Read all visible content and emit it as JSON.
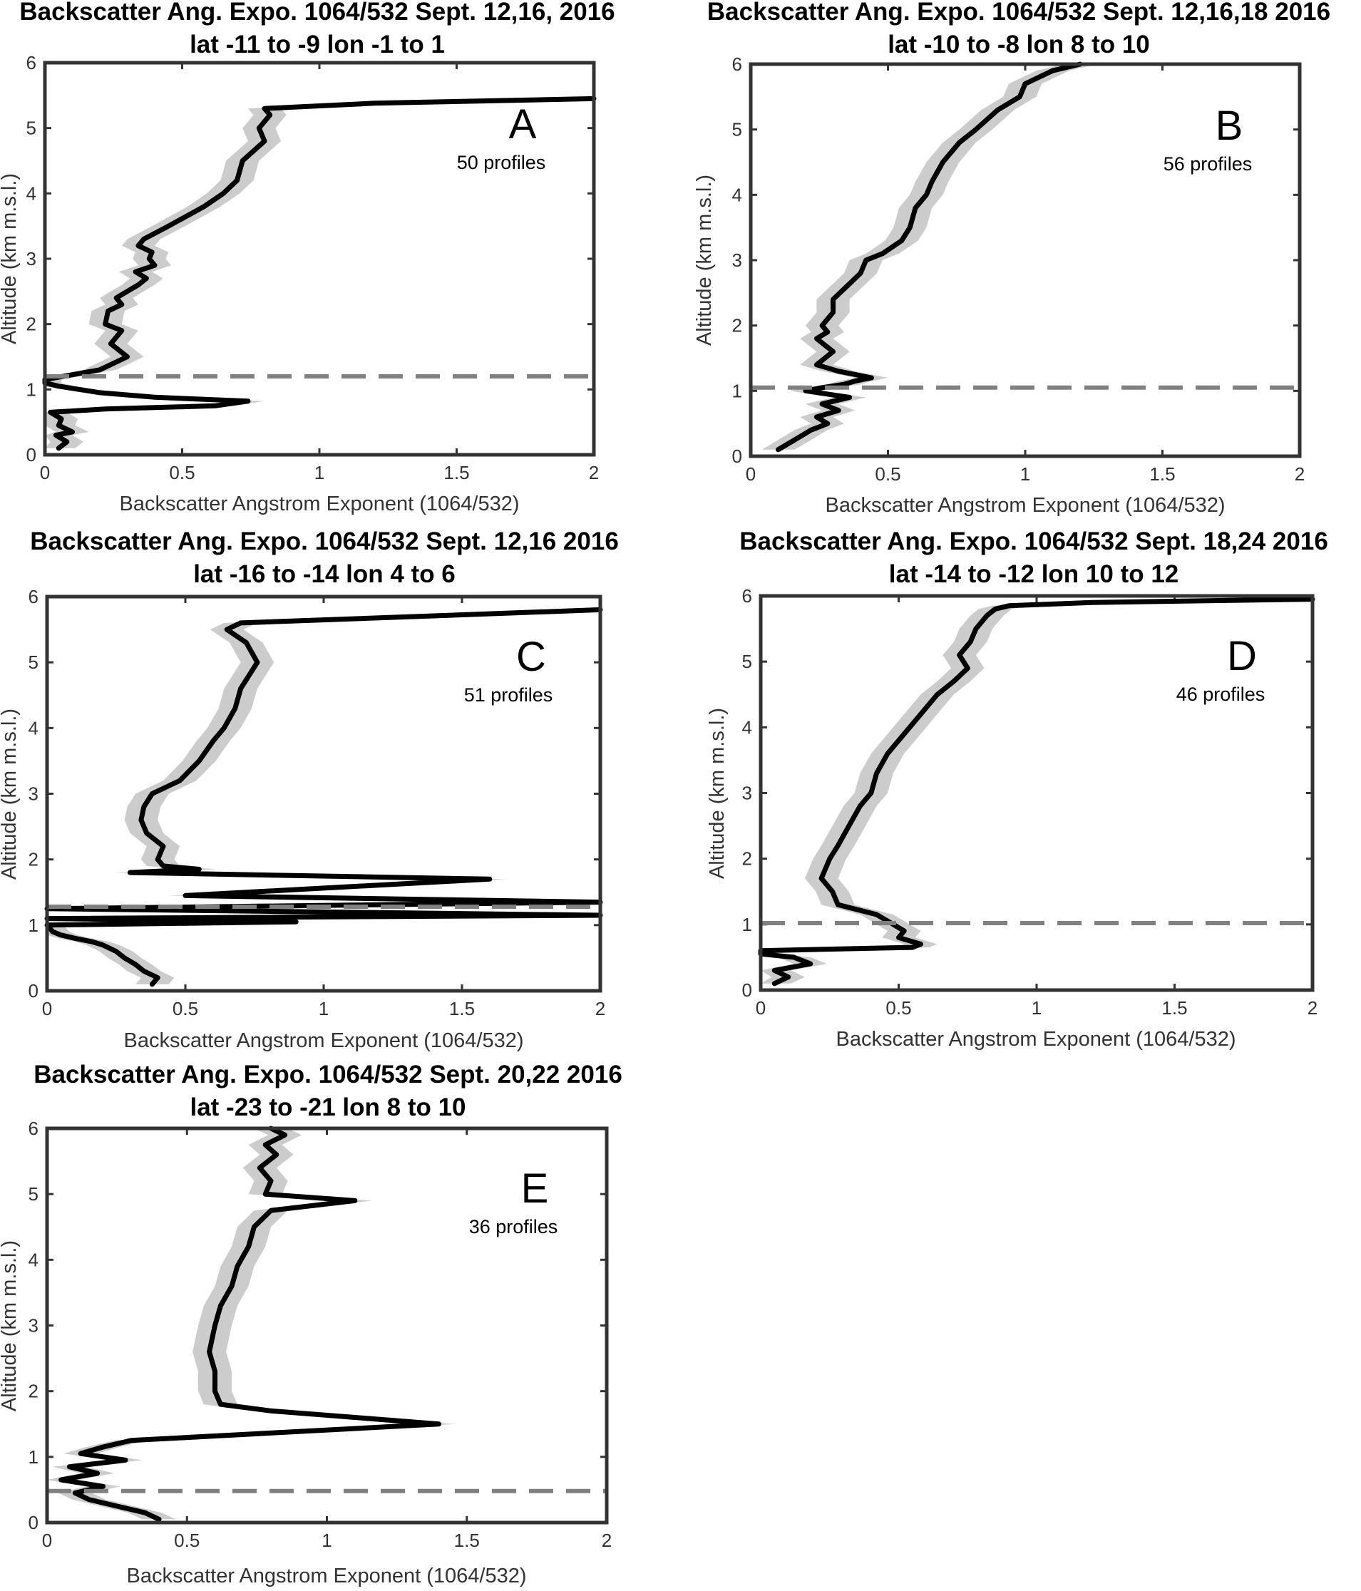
{
  "chart_data": [
    {
      "type": "line",
      "panel_letter": "A",
      "title_line1": "Backscatter Ang. Expo. 1064/532 Sept. 12,16, 2016",
      "title_line2": "lat -11 to -9 lon -1 to 1",
      "xlabel": "Backscatter Angstrom Exponent (1064/532)",
      "ylabel": "Altitude (km m.s.l.)",
      "xlim": [
        0,
        2
      ],
      "ylim": [
        0,
        6
      ],
      "xticks": [
        "0",
        "0.5",
        "1",
        "1.5",
        "2"
      ],
      "yticks": [
        "0",
        "1",
        "2",
        "3",
        "4",
        "5",
        "6"
      ],
      "profiles_label": "50 profiles",
      "dashed_line_altitude": 1.2,
      "series": [
        {
          "x": [
            0.05,
            0.08,
            0.04,
            0.1,
            0.05,
            0.06,
            0.02,
            0.22,
            0.62,
            0.74,
            0.4,
            0.2,
            0.05,
            0.0,
            0.0,
            0.2,
            0.3,
            0.24,
            0.28,
            0.22,
            0.23,
            0.28,
            0.26,
            0.3,
            0.34,
            0.37,
            0.33,
            0.4,
            0.38,
            0.39,
            0.34,
            0.36,
            0.45,
            0.58,
            0.65,
            0.7,
            0.72,
            0.8,
            0.78,
            0.82,
            0.8,
            1.2,
            2.0
          ],
          "y": [
            0.1,
            0.2,
            0.3,
            0.35,
            0.45,
            0.55,
            0.65,
            0.7,
            0.75,
            0.82,
            0.88,
            0.95,
            1.05,
            1.1,
            1.15,
            1.3,
            1.5,
            1.7,
            1.9,
            2.0,
            2.2,
            2.3,
            2.4,
            2.5,
            2.6,
            2.7,
            2.8,
            2.9,
            3.0,
            3.1,
            3.2,
            3.3,
            3.5,
            3.8,
            4.0,
            4.2,
            4.5,
            4.8,
            5.0,
            5.2,
            5.3,
            5.38,
            5.45
          ]
        }
      ]
    },
    {
      "type": "line",
      "panel_letter": "B",
      "title_line1": "Backscatter Ang. Expo. 1064/532 Sept. 12,16,18 2016",
      "title_line2": "lat -10 to -8 lon 8 to 10",
      "xlabel": "Backscatter Angstrom Exponent (1064/532)",
      "ylabel": "Altitude (km m.s.l.)",
      "xlim": [
        0,
        2
      ],
      "ylim": [
        0,
        6
      ],
      "xticks": [
        "0",
        "0.5",
        "1",
        "1.5",
        "2"
      ],
      "yticks": [
        "0",
        "1",
        "2",
        "3",
        "4",
        "5",
        "6"
      ],
      "profiles_label": "56 profiles",
      "dashed_line_altitude": 1.05,
      "series": [
        {
          "x": [
            0.1,
            0.14,
            0.18,
            0.22,
            0.28,
            0.24,
            0.32,
            0.26,
            0.36,
            0.2,
            0.26,
            0.34,
            0.38,
            0.44,
            0.32,
            0.24,
            0.3,
            0.24,
            0.28,
            0.26,
            0.3,
            0.3,
            0.35,
            0.4,
            0.42,
            0.48,
            0.55,
            0.58,
            0.6,
            0.64,
            0.66,
            0.7,
            0.76,
            0.82,
            0.9,
            0.98,
            1.0,
            1.1,
            1.2
          ],
          "y": [
            0.1,
            0.2,
            0.3,
            0.4,
            0.5,
            0.6,
            0.7,
            0.8,
            0.9,
            1.0,
            1.05,
            1.1,
            1.15,
            1.2,
            1.3,
            1.4,
            1.6,
            1.8,
            1.9,
            2.0,
            2.2,
            2.4,
            2.6,
            2.8,
            3.0,
            3.1,
            3.3,
            3.5,
            3.8,
            4.0,
            4.2,
            4.5,
            4.8,
            5.0,
            5.3,
            5.5,
            5.7,
            5.9,
            6.0
          ]
        }
      ]
    },
    {
      "type": "line",
      "panel_letter": "C",
      "title_line1": "Backscatter Ang. Expo. 1064/532 Sept. 12,16 2016",
      "title_line2": "lat -16 to -14 lon 4 to 6",
      "xlabel": "Backscatter Angstrom Exponent (1064/532)",
      "ylabel": "Altitude (km m.s.l.)",
      "xlim": [
        0,
        2
      ],
      "ylim": [
        0,
        6
      ],
      "xticks": [
        "0",
        "0.5",
        "1",
        "1.5",
        "2"
      ],
      "yticks": [
        "0",
        "1",
        "2",
        "3",
        "4",
        "5",
        "6"
      ],
      "profiles_label": "51 profiles",
      "dashed_line_altitude": 1.28,
      "series": [
        {
          "x": [
            0.38,
            0.4,
            0.35,
            0.32,
            0.28,
            0.25,
            0.2,
            0.16,
            0.1,
            0.05,
            0.02,
            0.0,
            0.9,
            0.0,
            2.0,
            0.0,
            2.0,
            0.5,
            1.6,
            0.3,
            0.55,
            0.42,
            0.4,
            0.42,
            0.36,
            0.34,
            0.35,
            0.38,
            0.48,
            0.55,
            0.6,
            0.64,
            0.68,
            0.7,
            0.76,
            0.72,
            0.65,
            0.7,
            2.0
          ],
          "y": [
            0.1,
            0.2,
            0.3,
            0.4,
            0.5,
            0.6,
            0.7,
            0.75,
            0.8,
            0.85,
            0.9,
            1.0,
            1.05,
            1.1,
            1.15,
            1.25,
            1.35,
            1.45,
            1.7,
            1.8,
            1.85,
            1.9,
            2.0,
            2.2,
            2.4,
            2.6,
            2.8,
            3.0,
            3.2,
            3.5,
            3.8,
            4.0,
            4.3,
            4.6,
            5.0,
            5.3,
            5.5,
            5.6,
            5.8
          ]
        }
      ]
    },
    {
      "type": "line",
      "panel_letter": "D",
      "title_line1": "Backscatter Ang. Expo. 1064/532 Sept. 18,24 2016",
      "title_line2": "lat -14 to -12 lon 10 to 12",
      "xlabel": "Backscatter Angstrom Exponent (1064/532)",
      "ylabel": "Altitude (km m.s.l.)",
      "xlim": [
        0,
        2
      ],
      "ylim": [
        0,
        6
      ],
      "xticks": [
        "0",
        "0.5",
        "1",
        "1.5",
        "2"
      ],
      "yticks": [
        "0",
        "1",
        "2",
        "3",
        "4",
        "5",
        "6"
      ],
      "profiles_label": "46 profiles",
      "dashed_line_altitude": 1.02,
      "series": [
        {
          "x": [
            0.05,
            0.1,
            0.05,
            0.18,
            0.12,
            0.0,
            0.0,
            0.55,
            0.58,
            0.5,
            0.52,
            0.48,
            0.42,
            0.28,
            0.26,
            0.22,
            0.25,
            0.28,
            0.32,
            0.36,
            0.4,
            0.42,
            0.46,
            0.52,
            0.58,
            0.64,
            0.7,
            0.75,
            0.72,
            0.76,
            0.78,
            0.8,
            0.82,
            0.85,
            0.9,
            1.2,
            2.0
          ],
          "y": [
            0.1,
            0.2,
            0.3,
            0.4,
            0.5,
            0.55,
            0.6,
            0.65,
            0.7,
            0.8,
            0.9,
            1.0,
            1.15,
            1.3,
            1.5,
            1.7,
            2.0,
            2.2,
            2.5,
            2.8,
            3.0,
            3.3,
            3.6,
            3.9,
            4.2,
            4.5,
            4.7,
            4.9,
            5.1,
            5.3,
            5.5,
            5.6,
            5.7,
            5.8,
            5.85,
            5.9,
            5.95
          ]
        }
      ]
    },
    {
      "type": "line",
      "panel_letter": "E",
      "title_line1": "Backscatter Ang. Expo. 1064/532 Sept. 20,22 2016",
      "title_line2": "lat -23 to -21 lon 8 to 10",
      "xlabel": "Backscatter Angstrom Exponent (1064/532)",
      "ylabel": "Altitude (km m.s.l.)",
      "xlim": [
        0,
        2
      ],
      "ylim": [
        0,
        6
      ],
      "xticks": [
        "0",
        "0.5",
        "1",
        "1.5",
        "2"
      ],
      "yticks": [
        "0",
        "1",
        "2",
        "3",
        "4",
        "5",
        "6"
      ],
      "profiles_label": "36 profiles",
      "dashed_line_altitude": 0.48,
      "series": [
        {
          "x": [
            0.4,
            0.35,
            0.25,
            0.15,
            0.1,
            0.2,
            0.05,
            0.18,
            0.08,
            0.28,
            0.12,
            0.2,
            0.3,
            1.4,
            1.1,
            0.8,
            0.62,
            0.6,
            0.6,
            0.58,
            0.6,
            0.62,
            0.66,
            0.68,
            0.72,
            0.74,
            0.8,
            1.1,
            0.78,
            0.8,
            0.76,
            0.82,
            0.78,
            0.85,
            0.8
          ],
          "y": [
            0.05,
            0.15,
            0.25,
            0.35,
            0.45,
            0.55,
            0.65,
            0.75,
            0.85,
            0.95,
            1.05,
            1.15,
            1.25,
            1.5,
            1.6,
            1.7,
            1.8,
            2.0,
            2.3,
            2.6,
            3.0,
            3.3,
            3.6,
            3.9,
            4.2,
            4.5,
            4.75,
            4.9,
            5.0,
            5.2,
            5.4,
            5.6,
            5.75,
            5.9,
            6.0
          ]
        }
      ]
    }
  ]
}
